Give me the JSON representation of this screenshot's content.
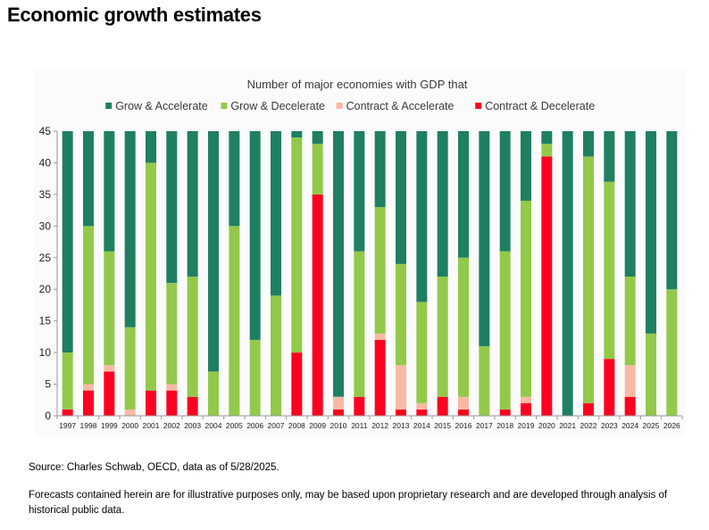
{
  "page": {
    "title": "Economic growth estimates",
    "source": "Source: Charles Schwab, OECD, data as of 5/28/2025.",
    "disclaimer": "Forecasts contained herein are for illustrative purposes only, may be based upon proprietary research and are developed through analysis of historical public data."
  },
  "chart_data": {
    "type": "bar",
    "stacked": true,
    "title": "Number of major economies with GDP that",
    "xlabel": "",
    "ylabel": "",
    "ylim": [
      0,
      45
    ],
    "yticks": [
      0,
      5,
      10,
      15,
      20,
      25,
      30,
      35,
      40,
      45
    ],
    "grid": false,
    "legend_position": "top",
    "categories": [
      "1997",
      "1998",
      "1999",
      "2000",
      "2001",
      "2002",
      "2003",
      "2004",
      "2005",
      "2006",
      "2007",
      "2008",
      "2009",
      "2010",
      "2011",
      "2012",
      "2013",
      "2014",
      "2015",
      "2016",
      "2017",
      "2018",
      "2019",
      "2020",
      "2021",
      "2022",
      "2023",
      "2024",
      "2025",
      "2026"
    ],
    "series": [
      {
        "name": "Contract & Decelerate",
        "color": "#ff0020",
        "values": [
          1,
          4,
          7,
          0,
          4,
          4,
          3,
          0,
          0,
          0,
          0,
          10,
          35,
          1,
          3,
          12,
          1,
          1,
          3,
          1,
          0,
          1,
          2,
          41,
          0,
          2,
          9,
          3,
          0,
          0
        ]
      },
      {
        "name": "Contract & Accelerate",
        "color": "#f9b9a4",
        "values": [
          0,
          1,
          1,
          1,
          0,
          1,
          0,
          0,
          0,
          0,
          0,
          0,
          0,
          2,
          0,
          1,
          7,
          1,
          0,
          2,
          0,
          0,
          1,
          0,
          0,
          0,
          0,
          5,
          0,
          0
        ]
      },
      {
        "name": "Grow & Decelerate",
        "color": "#92c94a",
        "values": [
          9,
          25,
          18,
          13,
          36,
          16,
          19,
          7,
          30,
          12,
          19,
          34,
          8,
          0,
          23,
          20,
          16,
          16,
          19,
          22,
          11,
          25,
          31,
          2,
          0,
          39,
          28,
          14,
          13,
          20
        ]
      },
      {
        "name": "Grow & Accelerate",
        "color": "#1f7f62",
        "values": [
          35,
          15,
          19,
          31,
          5,
          24,
          23,
          38,
          15,
          33,
          26,
          1,
          2,
          42,
          19,
          12,
          21,
          27,
          23,
          20,
          34,
          19,
          11,
          2,
          45,
          4,
          8,
          23,
          32,
          25
        ]
      }
    ],
    "legend_order": [
      "Grow & Accelerate",
      "Grow & Decelerate",
      "Contract & Accelerate",
      "Contract & Decelerate"
    ]
  }
}
